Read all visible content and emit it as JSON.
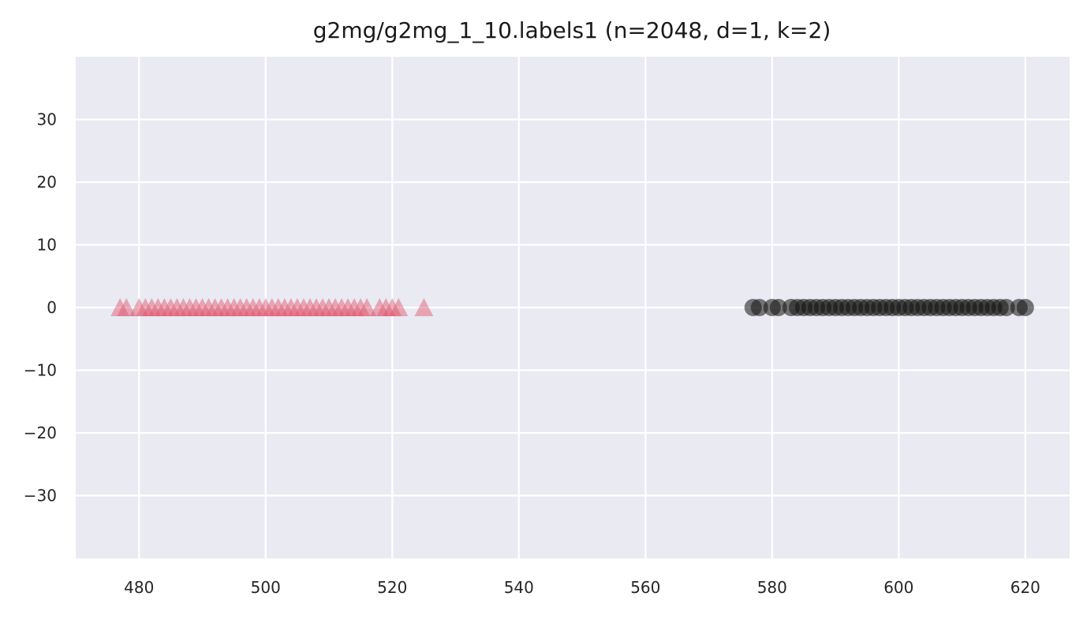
{
  "chart_data": {
    "type": "scatter",
    "title": "g2mg/g2mg_1_10.labels1 (n=2048, d=1, k=2)",
    "xlabel": "",
    "ylabel": "",
    "xlim": [
      470,
      627
    ],
    "ylim": [
      -40,
      40
    ],
    "xticks": [
      480,
      500,
      520,
      540,
      560,
      580,
      600,
      620
    ],
    "yticks": [
      30,
      20,
      10,
      0,
      -10,
      -20,
      -30
    ],
    "xtick_labels": [
      "480",
      "500",
      "520",
      "540",
      "560",
      "580",
      "600",
      "620"
    ],
    "ytick_labels": [
      "30",
      "20",
      "10",
      "0",
      "−10",
      "−20",
      "−30"
    ],
    "grid": true,
    "background": "#eaeaf2",
    "series": [
      {
        "marker": "triangle",
        "color": "#e05068",
        "opacity": 0.45,
        "points": [
          [
            477,
            0
          ],
          [
            478,
            0
          ],
          [
            480,
            0
          ],
          [
            481,
            0
          ],
          [
            482,
            0
          ],
          [
            483,
            0
          ],
          [
            484,
            0
          ],
          [
            485,
            0
          ],
          [
            486,
            0
          ],
          [
            487,
            0
          ],
          [
            488,
            0
          ],
          [
            489,
            0
          ],
          [
            490,
            0
          ],
          [
            491,
            0
          ],
          [
            492,
            0
          ],
          [
            493,
            0
          ],
          [
            494,
            0
          ],
          [
            495,
            0
          ],
          [
            496,
            0
          ],
          [
            497,
            0
          ],
          [
            498,
            0
          ],
          [
            499,
            0
          ],
          [
            500,
            0
          ],
          [
            501,
            0
          ],
          [
            502,
            0
          ],
          [
            503,
            0
          ],
          [
            504,
            0
          ],
          [
            505,
            0
          ],
          [
            506,
            0
          ],
          [
            507,
            0
          ],
          [
            508,
            0
          ],
          [
            509,
            0
          ],
          [
            510,
            0
          ],
          [
            511,
            0
          ],
          [
            512,
            0
          ],
          [
            513,
            0
          ],
          [
            514,
            0
          ],
          [
            515,
            0
          ],
          [
            516,
            0
          ],
          [
            518,
            0
          ],
          [
            519,
            0
          ],
          [
            520,
            0
          ],
          [
            521,
            0
          ],
          [
            525,
            0
          ]
        ]
      },
      {
        "marker": "circle",
        "color": "#111111",
        "opacity": 0.55,
        "points": [
          [
            577,
            0
          ],
          [
            578,
            0
          ],
          [
            580,
            0
          ],
          [
            581,
            0
          ],
          [
            583,
            0
          ],
          [
            584,
            0
          ],
          [
            585,
            0
          ],
          [
            586,
            0
          ],
          [
            587,
            0
          ],
          [
            588,
            0
          ],
          [
            589,
            0
          ],
          [
            590,
            0
          ],
          [
            591,
            0
          ],
          [
            592,
            0
          ],
          [
            593,
            0
          ],
          [
            594,
            0
          ],
          [
            595,
            0
          ],
          [
            596,
            0
          ],
          [
            597,
            0
          ],
          [
            598,
            0
          ],
          [
            599,
            0
          ],
          [
            600,
            0
          ],
          [
            601,
            0
          ],
          [
            602,
            0
          ],
          [
            603,
            0
          ],
          [
            604,
            0
          ],
          [
            605,
            0
          ],
          [
            606,
            0
          ],
          [
            607,
            0
          ],
          [
            608,
            0
          ],
          [
            609,
            0
          ],
          [
            610,
            0
          ],
          [
            611,
            0
          ],
          [
            612,
            0
          ],
          [
            613,
            0
          ],
          [
            614,
            0
          ],
          [
            615,
            0
          ],
          [
            616,
            0
          ],
          [
            617,
            0
          ],
          [
            619,
            0
          ],
          [
            620,
            0
          ]
        ]
      }
    ]
  }
}
